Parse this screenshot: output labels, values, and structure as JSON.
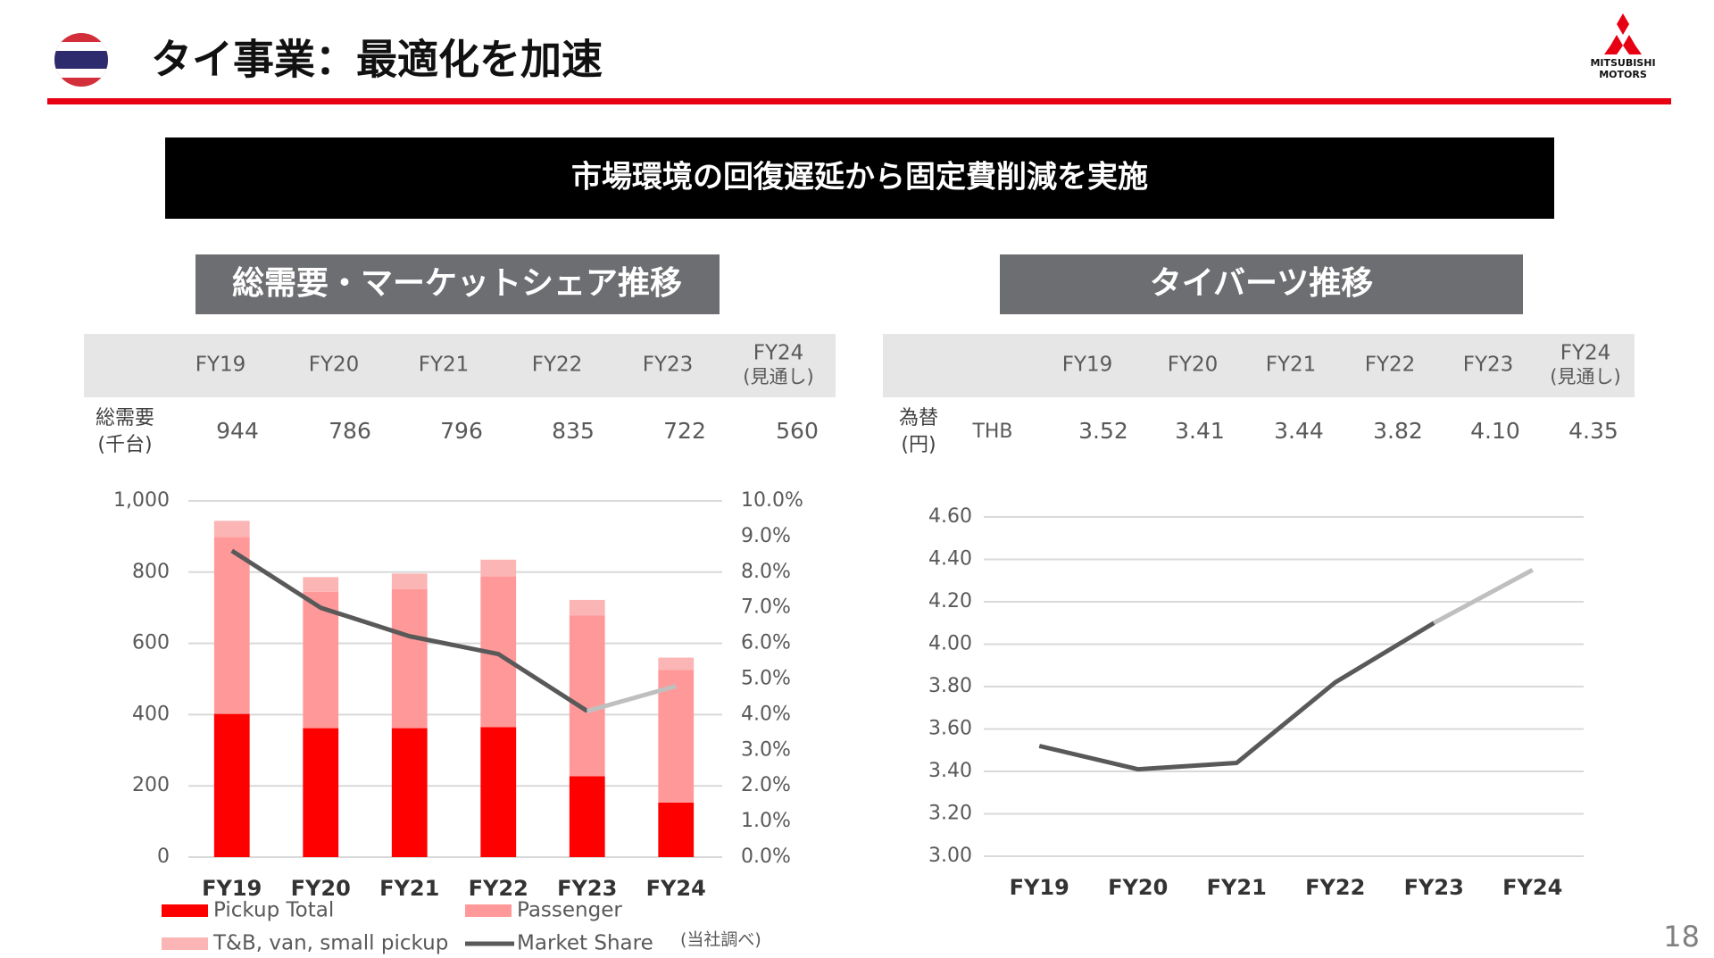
{
  "header": {
    "title": "タイ事業：最適化を加速",
    "logo": [
      "MITSUBISHI",
      "MOTORS"
    ],
    "page_number": "18"
  },
  "banner": "市場環境の回復遅延から固定費削減を実施",
  "sections": [
    "総需要・マーケットシェア推移",
    "タイバーツ推移"
  ],
  "tables": [
    {
      "columns": [
        "FY19",
        "FY20",
        "FY21",
        "FY22",
        "FY23",
        "FY24"
      ],
      "forecast_note": "(見通し)",
      "row_label": "総需要",
      "row_unit": "(千台)",
      "values": [
        "944",
        "786",
        "796",
        "835",
        "722",
        "560"
      ]
    },
    {
      "columns": [
        "FY19",
        "FY20",
        "FY21",
        "FY22",
        "FY23",
        "FY24"
      ],
      "forecast_note": "(見通し)",
      "row_label": "為替",
      "row_unit": "(円)",
      "currency": "THB",
      "values": [
        "3.52",
        "3.41",
        "3.44",
        "3.82",
        "4.10",
        "4.35"
      ]
    }
  ],
  "chart_data": [
    {
      "type": "bar",
      "stacked": true,
      "grid": true,
      "legend": true,
      "categories": [
        "FY19",
        "FY20",
        "FY21",
        "FY22",
        "FY23",
        "FY24"
      ],
      "series": [
        {
          "name": "Pickup Total",
          "type": "bar",
          "color": "#ff0000",
          "values": [
            402,
            362,
            362,
            365,
            227,
            153
          ]
        },
        {
          "name": "Passenger",
          "type": "bar",
          "color": "#ff9999",
          "values": [
            497,
            383,
            390,
            423,
            451,
            372
          ]
        },
        {
          "name": "T&B, van, small pickup",
          "type": "bar",
          "color": "#fbb5b5",
          "values": [
            45,
            41,
            44,
            47,
            44,
            35
          ]
        },
        {
          "name": "Market Share",
          "type": "line",
          "axis": "y2",
          "color": "#595959",
          "forecast_color": "#bfbfbf",
          "values": [
            8.6,
            7.0,
            6.2,
            5.7,
            4.1,
            4.8
          ]
        }
      ],
      "ylim": [
        0,
        1000
      ],
      "yticks": [
        0,
        200,
        400,
        600,
        800,
        {
          "value": 1000,
          "label": "1,000"
        }
      ],
      "y2lim": [
        0,
        10
      ],
      "y2ticks": [
        {
          "value": 0,
          "label": "0.0%"
        },
        {
          "value": 1,
          "label": "1.0%"
        },
        {
          "value": 2,
          "label": "2.0%"
        },
        {
          "value": 3,
          "label": "3.0%"
        },
        {
          "value": 4,
          "label": "4.0%"
        },
        {
          "value": 5,
          "label": "5.0%"
        },
        {
          "value": 6,
          "label": "6.0%"
        },
        {
          "value": 7,
          "label": "7.0%"
        },
        {
          "value": 8,
          "label": "8.0%"
        },
        {
          "value": 9,
          "label": "9.0%"
        },
        {
          "value": 10,
          "label": "10.0%"
        }
      ],
      "note": "(当社調べ)"
    },
    {
      "type": "line",
      "grid": true,
      "legend": false,
      "categories": [
        "FY19",
        "FY20",
        "FY21",
        "FY22",
        "FY23",
        "FY24"
      ],
      "series": [
        {
          "type": "line",
          "color": "#595959",
          "forecast_color": "#bfbfbf",
          "values": [
            3.52,
            3.41,
            3.44,
            3.82,
            4.1,
            4.35
          ]
        }
      ],
      "ylim": [
        3.0,
        4.6
      ],
      "yticks": [
        {
          "value": 3.0,
          "label": "3.00"
        },
        {
          "value": 3.2,
          "label": "3.20"
        },
        {
          "value": 3.4,
          "label": "3.40"
        },
        {
          "value": 3.6,
          "label": "3.60"
        },
        {
          "value": 3.8,
          "label": "3.80"
        },
        {
          "value": 4.0,
          "label": "4.00"
        },
        {
          "value": 4.2,
          "label": "4.20"
        },
        {
          "value": 4.4,
          "label": "4.40"
        },
        {
          "value": 4.6,
          "label": "4.60"
        }
      ]
    }
  ]
}
